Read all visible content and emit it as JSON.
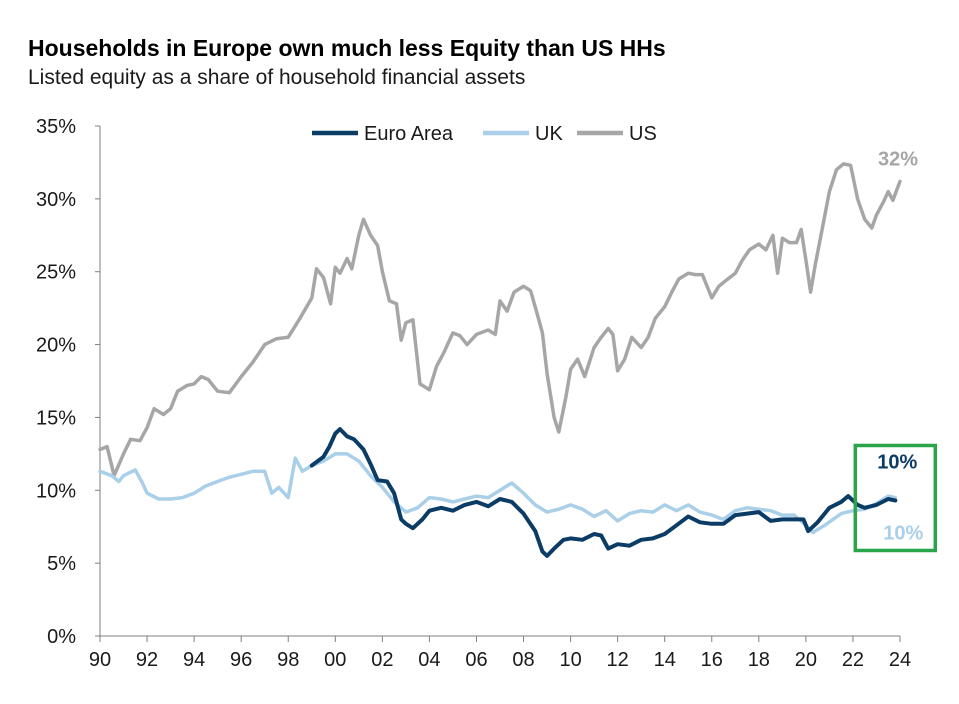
{
  "chart_data": {
    "type": "line",
    "title": "Households in Europe own much less Equity than US HHs",
    "subtitle": "Listed equity as a share of household financial assets",
    "ylim": [
      0,
      35
    ],
    "y_ticks": [
      "0%",
      "5%",
      "10%",
      "15%",
      "20%",
      "25%",
      "30%",
      "35%"
    ],
    "x_ticks": [
      "90",
      "92",
      "94",
      "96",
      "98",
      "00",
      "02",
      "04",
      "06",
      "08",
      "10",
      "12",
      "14",
      "16",
      "18",
      "20",
      "22",
      "24"
    ],
    "xlim": [
      1990,
      2024
    ],
    "legend_position": "top-center",
    "series": [
      {
        "name": "Euro Area",
        "color": "#0b3c66",
        "points": [
          [
            1999.0,
            11.7
          ],
          [
            1999.5,
            12.3
          ],
          [
            1999.75,
            13.0
          ],
          [
            2000.0,
            13.9
          ],
          [
            2000.2,
            14.2
          ],
          [
            2000.5,
            13.7
          ],
          [
            2000.8,
            13.5
          ],
          [
            2001.2,
            12.8
          ],
          [
            2001.5,
            11.8
          ],
          [
            2001.8,
            10.7
          ],
          [
            2002.2,
            10.6
          ],
          [
            2002.5,
            9.8
          ],
          [
            2002.8,
            8.0
          ],
          [
            2003.0,
            7.7
          ],
          [
            2003.3,
            7.4
          ],
          [
            2003.7,
            8.0
          ],
          [
            2004.0,
            8.6
          ],
          [
            2004.5,
            8.8
          ],
          [
            2005.0,
            8.6
          ],
          [
            2005.5,
            9.0
          ],
          [
            2006.0,
            9.2
          ],
          [
            2006.5,
            8.9
          ],
          [
            2007.0,
            9.4
          ],
          [
            2007.5,
            9.2
          ],
          [
            2008.0,
            8.4
          ],
          [
            2008.5,
            7.2
          ],
          [
            2008.8,
            5.8
          ],
          [
            2009.0,
            5.5
          ],
          [
            2009.3,
            6.0
          ],
          [
            2009.7,
            6.6
          ],
          [
            2010.0,
            6.7
          ],
          [
            2010.5,
            6.6
          ],
          [
            2011.0,
            7.0
          ],
          [
            2011.3,
            6.9
          ],
          [
            2011.6,
            6.0
          ],
          [
            2012.0,
            6.3
          ],
          [
            2012.5,
            6.2
          ],
          [
            2013.0,
            6.6
          ],
          [
            2013.5,
            6.7
          ],
          [
            2014.0,
            7.0
          ],
          [
            2014.5,
            7.6
          ],
          [
            2015.0,
            8.2
          ],
          [
            2015.5,
            7.8
          ],
          [
            2016.0,
            7.7
          ],
          [
            2016.5,
            7.7
          ],
          [
            2017.0,
            8.3
          ],
          [
            2017.5,
            8.4
          ],
          [
            2018.0,
            8.5
          ],
          [
            2018.5,
            7.9
          ],
          [
            2019.0,
            8.0
          ],
          [
            2019.5,
            8.0
          ],
          [
            2019.9,
            8.0
          ],
          [
            2020.1,
            7.2
          ],
          [
            2020.5,
            7.8
          ],
          [
            2021.0,
            8.8
          ],
          [
            2021.5,
            9.2
          ],
          [
            2021.8,
            9.6
          ],
          [
            2022.2,
            9.0
          ],
          [
            2022.5,
            8.8
          ],
          [
            2023.0,
            9.0
          ],
          [
            2023.5,
            9.4
          ],
          [
            2023.8,
            9.3
          ]
        ]
      },
      {
        "name": "UK",
        "color": "#a9cfe9",
        "points": [
          [
            1990.0,
            11.3
          ],
          [
            1990.5,
            11.0
          ],
          [
            1990.8,
            10.6
          ],
          [
            1991.0,
            11.0
          ],
          [
            1991.5,
            11.4
          ],
          [
            1991.8,
            10.5
          ],
          [
            1992.0,
            9.8
          ],
          [
            1992.5,
            9.4
          ],
          [
            1993.0,
            9.4
          ],
          [
            1993.5,
            9.5
          ],
          [
            1994.0,
            9.8
          ],
          [
            1994.5,
            10.3
          ],
          [
            1995.0,
            10.6
          ],
          [
            1995.5,
            10.9
          ],
          [
            1996.0,
            11.1
          ],
          [
            1996.5,
            11.3
          ],
          [
            1997.0,
            11.3
          ],
          [
            1997.3,
            9.8
          ],
          [
            1997.6,
            10.2
          ],
          [
            1998.0,
            9.5
          ],
          [
            1998.3,
            12.2
          ],
          [
            1998.6,
            11.3
          ],
          [
            1999.0,
            11.7
          ],
          [
            1999.5,
            12.0
          ],
          [
            2000.0,
            12.5
          ],
          [
            2000.5,
            12.5
          ],
          [
            2001.0,
            12.0
          ],
          [
            2001.5,
            11.0
          ],
          [
            2002.0,
            10.2
          ],
          [
            2002.5,
            9.2
          ],
          [
            2003.0,
            8.5
          ],
          [
            2003.5,
            8.8
          ],
          [
            2004.0,
            9.5
          ],
          [
            2004.5,
            9.4
          ],
          [
            2005.0,
            9.2
          ],
          [
            2005.5,
            9.4
          ],
          [
            2006.0,
            9.6
          ],
          [
            2006.5,
            9.5
          ],
          [
            2007.0,
            10.0
          ],
          [
            2007.5,
            10.5
          ],
          [
            2008.0,
            9.8
          ],
          [
            2008.5,
            9.0
          ],
          [
            2009.0,
            8.5
          ],
          [
            2009.5,
            8.7
          ],
          [
            2010.0,
            9.0
          ],
          [
            2010.5,
            8.7
          ],
          [
            2011.0,
            8.2
          ],
          [
            2011.5,
            8.6
          ],
          [
            2012.0,
            7.9
          ],
          [
            2012.5,
            8.4
          ],
          [
            2013.0,
            8.6
          ],
          [
            2013.5,
            8.5
          ],
          [
            2014.0,
            9.0
          ],
          [
            2014.5,
            8.6
          ],
          [
            2015.0,
            9.0
          ],
          [
            2015.5,
            8.5
          ],
          [
            2016.0,
            8.3
          ],
          [
            2016.5,
            8.0
          ],
          [
            2017.0,
            8.6
          ],
          [
            2017.5,
            8.8
          ],
          [
            2018.0,
            8.7
          ],
          [
            2018.5,
            8.6
          ],
          [
            2019.0,
            8.3
          ],
          [
            2019.5,
            8.3
          ],
          [
            2020.0,
            7.6
          ],
          [
            2020.3,
            7.1
          ],
          [
            2020.8,
            7.6
          ],
          [
            2021.5,
            8.4
          ],
          [
            2022.0,
            8.6
          ],
          [
            2022.5,
            8.7
          ],
          [
            2023.0,
            9.1
          ],
          [
            2023.5,
            9.6
          ],
          [
            2023.8,
            9.5
          ]
        ]
      },
      {
        "name": "US",
        "color": "#a6a6a6",
        "points": [
          [
            1990.0,
            12.8
          ],
          [
            1990.3,
            13.0
          ],
          [
            1990.6,
            11.0
          ],
          [
            1991.0,
            12.5
          ],
          [
            1991.3,
            13.5
          ],
          [
            1991.7,
            13.4
          ],
          [
            1992.0,
            14.3
          ],
          [
            1992.3,
            15.6
          ],
          [
            1992.7,
            15.2
          ],
          [
            1993.0,
            15.6
          ],
          [
            1993.3,
            16.8
          ],
          [
            1993.7,
            17.2
          ],
          [
            1994.0,
            17.3
          ],
          [
            1994.3,
            17.8
          ],
          [
            1994.6,
            17.6
          ],
          [
            1995.0,
            16.8
          ],
          [
            1995.5,
            16.7
          ],
          [
            1996.0,
            17.8
          ],
          [
            1996.5,
            18.8
          ],
          [
            1997.0,
            20.0
          ],
          [
            1997.5,
            20.4
          ],
          [
            1998.0,
            20.5
          ],
          [
            1998.5,
            21.8
          ],
          [
            1999.0,
            23.2
          ],
          [
            1999.2,
            25.2
          ],
          [
            1999.5,
            24.6
          ],
          [
            1999.8,
            22.8
          ],
          [
            2000.0,
            25.3
          ],
          [
            2000.2,
            24.9
          ],
          [
            2000.5,
            25.9
          ],
          [
            2000.7,
            25.2
          ],
          [
            2001.0,
            27.5
          ],
          [
            2001.2,
            28.6
          ],
          [
            2001.5,
            27.5
          ],
          [
            2001.8,
            26.8
          ],
          [
            2002.0,
            25.0
          ],
          [
            2002.3,
            23.0
          ],
          [
            2002.6,
            22.8
          ],
          [
            2002.8,
            20.3
          ],
          [
            2003.0,
            21.5
          ],
          [
            2003.3,
            21.7
          ],
          [
            2003.6,
            17.3
          ],
          [
            2004.0,
            16.9
          ],
          [
            2004.3,
            18.5
          ],
          [
            2004.6,
            19.4
          ],
          [
            2005.0,
            20.8
          ],
          [
            2005.3,
            20.6
          ],
          [
            2005.6,
            20.0
          ],
          [
            2006.0,
            20.7
          ],
          [
            2006.5,
            21.0
          ],
          [
            2006.8,
            20.7
          ],
          [
            2007.0,
            23.0
          ],
          [
            2007.3,
            22.3
          ],
          [
            2007.6,
            23.6
          ],
          [
            2008.0,
            24.0
          ],
          [
            2008.3,
            23.7
          ],
          [
            2008.6,
            22.0
          ],
          [
            2008.8,
            20.8
          ],
          [
            2009.0,
            18.0
          ],
          [
            2009.3,
            15.0
          ],
          [
            2009.5,
            14.0
          ],
          [
            2009.8,
            16.4
          ],
          [
            2010.0,
            18.3
          ],
          [
            2010.3,
            19.0
          ],
          [
            2010.6,
            17.8
          ],
          [
            2011.0,
            19.8
          ],
          [
            2011.3,
            20.5
          ],
          [
            2011.6,
            21.1
          ],
          [
            2011.8,
            20.7
          ],
          [
            2012.0,
            18.2
          ],
          [
            2012.3,
            19.0
          ],
          [
            2012.6,
            20.5
          ],
          [
            2013.0,
            19.8
          ],
          [
            2013.3,
            20.5
          ],
          [
            2013.6,
            21.8
          ],
          [
            2014.0,
            22.6
          ],
          [
            2014.3,
            23.6
          ],
          [
            2014.6,
            24.5
          ],
          [
            2015.0,
            24.9
          ],
          [
            2015.3,
            24.8
          ],
          [
            2015.6,
            24.8
          ],
          [
            2016.0,
            23.2
          ],
          [
            2016.3,
            24.0
          ],
          [
            2016.6,
            24.4
          ],
          [
            2017.0,
            24.9
          ],
          [
            2017.3,
            25.8
          ],
          [
            2017.6,
            26.5
          ],
          [
            2018.0,
            26.9
          ],
          [
            2018.3,
            26.5
          ],
          [
            2018.6,
            27.5
          ],
          [
            2018.8,
            24.9
          ],
          [
            2019.0,
            27.3
          ],
          [
            2019.3,
            27.0
          ],
          [
            2019.6,
            27.0
          ],
          [
            2019.8,
            27.9
          ],
          [
            2020.0,
            25.8
          ],
          [
            2020.2,
            23.6
          ],
          [
            2020.4,
            25.5
          ],
          [
            2020.7,
            28.0
          ],
          [
            2021.0,
            30.5
          ],
          [
            2021.3,
            32.0
          ],
          [
            2021.6,
            32.4
          ],
          [
            2021.9,
            32.3
          ],
          [
            2022.2,
            30.0
          ],
          [
            2022.5,
            28.6
          ],
          [
            2022.8,
            28.0
          ],
          [
            2023.0,
            28.9
          ],
          [
            2023.3,
            29.8
          ],
          [
            2023.5,
            30.5
          ],
          [
            2023.7,
            29.9
          ],
          [
            2024.0,
            31.2
          ]
        ]
      }
    ],
    "annotations": [
      {
        "text": "32%",
        "series": "US",
        "color": "#a6a6a6"
      },
      {
        "text": "10%",
        "series": "Euro Area",
        "color": "#0b3c66"
      },
      {
        "text": "10%",
        "series": "UK",
        "color": "#a9cfe9"
      }
    ],
    "highlight_box_color": "#2aa54a"
  }
}
